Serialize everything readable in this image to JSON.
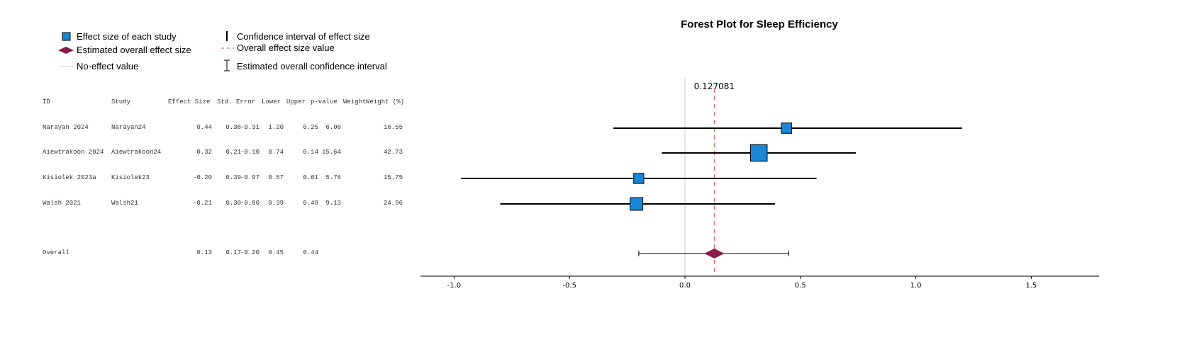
{
  "legend": {
    "study_effect": "Effect size of each study",
    "overall_effect": "Estimated overall effect size",
    "no_effect": "No-effect value",
    "ci": "Confidence interval of effect size",
    "overall_value": "Overall effect size value",
    "overall_ci": "Estimated overall confidence interval"
  },
  "table": {
    "headers": [
      "ID",
      "Study",
      "Effect Size",
      "Std. Error",
      "Lower",
      "Upper",
      "p-value",
      "Weight",
      "Weight (%)"
    ],
    "rows": [
      [
        "Narayan 2024",
        "Narayan24",
        "0.44",
        "0.38",
        "-0.31",
        "1.20",
        "0.25",
        "6.06",
        "16.55"
      ],
      [
        "Aiewtrakoon 2024",
        "Aiewtrakoon24",
        "0.32",
        "0.21",
        "-0.10",
        "0.74",
        "0.14",
        "15.64",
        "42.73"
      ],
      [
        "Kisiolek 2023a",
        "Kisiolek23",
        "-0.20",
        "0.39",
        "-0.97",
        "0.57",
        "0.61",
        "5.76",
        "15.75"
      ],
      [
        "Walsh 2021",
        "Walsh21",
        "-0.21",
        "0.30",
        "-0.80",
        "0.39",
        "0.49",
        "9.13",
        "24.96"
      ]
    ],
    "overall": [
      "Overall",
      "",
      "0.13",
      "0.17",
      "-0.20",
      "0.45",
      "0.44",
      "",
      ""
    ]
  },
  "chart_data": {
    "type": "forest",
    "title": "Forest Plot for Sleep Efficiency",
    "xlim": [
      -1.15,
      1.8
    ],
    "xticks": [
      "-1.0",
      "-0.5",
      "0.0",
      "0.5",
      "1.0",
      "1.5"
    ],
    "xtick_values": [
      -1.0,
      -0.5,
      0.0,
      0.5,
      1.0,
      1.5
    ],
    "no_effect": 0,
    "overall_label": "0.127081",
    "studies": [
      {
        "name": "Narayan 2024",
        "effect": 0.44,
        "lower": -0.31,
        "upper": 1.2,
        "weight": 16.55
      },
      {
        "name": "Aiewtrakoon 2024",
        "effect": 0.32,
        "lower": -0.1,
        "upper": 0.74,
        "weight": 42.73
      },
      {
        "name": "Kisiolek 2023a",
        "effect": -0.2,
        "lower": -0.97,
        "upper": 0.57,
        "weight": 15.75
      },
      {
        "name": "Walsh 2021",
        "effect": -0.21,
        "lower": -0.8,
        "upper": 0.39,
        "weight": 24.96
      }
    ],
    "overall": {
      "effect": 0.127081,
      "lower": -0.2,
      "upper": 0.45
    },
    "colors": {
      "square": "#1a86d6",
      "diamond": "#8b1a4a",
      "dashed": "#d9534f",
      "zero": "#cccccc"
    }
  }
}
